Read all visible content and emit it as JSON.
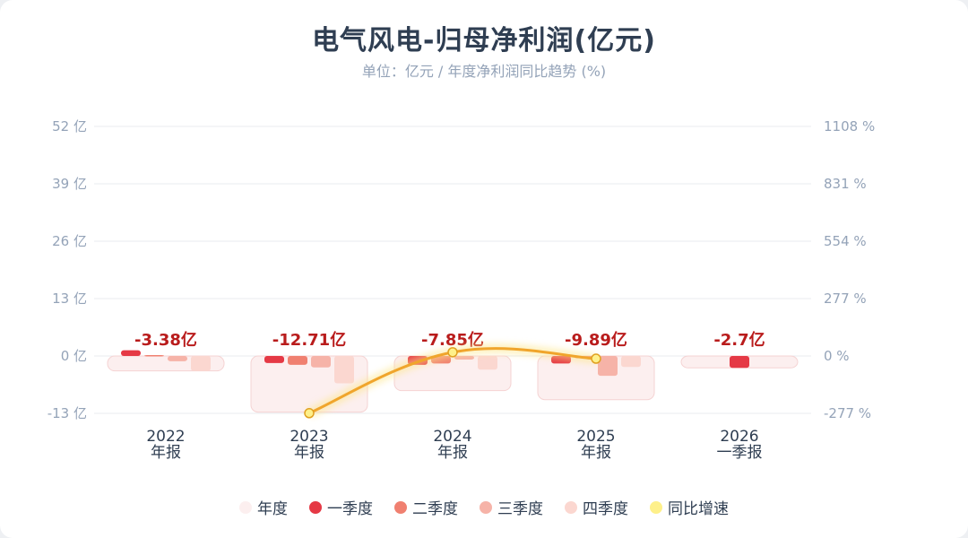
{
  "title": "电气风电-归母净利润(亿元)",
  "subtitle": "单位：亿元 / 年度净利润同比趋势 (%)",
  "colors": {
    "annual": "#fcefef",
    "q1": "#e53945",
    "q2": "#f08070",
    "q3": "#f6b3a8",
    "q4": "#fbd7d0",
    "yoy": "#f0a52c",
    "yoy_marker": "#fef08a",
    "value_label": "#b91c1c"
  },
  "chart_data": {
    "type": "bar",
    "title": "电气风电-归母净利润(亿元)",
    "subtitle": "单位：亿元 / 年度净利润同比趋势 (%)",
    "categories": [
      {
        "year": "2022",
        "period": "年报"
      },
      {
        "year": "2023",
        "period": "年报"
      },
      {
        "year": "2024",
        "period": "年报"
      },
      {
        "year": "2025",
        "period": "年报"
      },
      {
        "year": "2026",
        "period": "一季报"
      }
    ],
    "y_left": {
      "ticks": [
        52,
        39,
        26,
        13,
        0,
        -13
      ],
      "tick_labels": [
        "52 亿",
        "39 亿",
        "26 亿",
        "13 亿",
        "0 亿",
        "-13 亿"
      ],
      "range": [
        -13,
        52
      ]
    },
    "y_right": {
      "ticks": [
        1108,
        831,
        554,
        277,
        0,
        -277
      ],
      "tick_labels": [
        "1108 %",
        "831 %",
        "554 %",
        "277 %",
        "0 %",
        "-277 %"
      ],
      "range": [
        -277,
        1108
      ]
    },
    "annual_labels": [
      "-3.38亿",
      "-12.71亿",
      "-7.85亿",
      "-9.89亿",
      "-2.7亿"
    ],
    "series": [
      {
        "name": "年度",
        "key": "annual",
        "values": [
          -3.38,
          -12.71,
          -7.85,
          -9.89,
          -2.7
        ]
      },
      {
        "name": "一季度",
        "key": "q1",
        "values": [
          1.3,
          -1.6,
          -2.0,
          -1.7,
          -2.7
        ]
      },
      {
        "name": "二季度",
        "key": "q2",
        "values": [
          0.2,
          -2.0,
          -1.7,
          -0.5,
          null
        ]
      },
      {
        "name": "三季度",
        "key": "q3",
        "values": [
          -1.2,
          -2.6,
          -0.8,
          -4.5,
          null
        ]
      },
      {
        "name": "四季度",
        "key": "q4",
        "values": [
          -3.4,
          -6.2,
          -3.1,
          -2.5,
          null
        ]
      },
      {
        "name": "同比增速",
        "key": "yoy",
        "axis": "right",
        "values": [
          null,
          -276,
          18,
          -13,
          null
        ]
      }
    ],
    "grid": true,
    "legend_position": "bottom"
  },
  "legend": [
    {
      "label": "年度",
      "color_key": "annual"
    },
    {
      "label": "一季度",
      "color_key": "q1"
    },
    {
      "label": "二季度",
      "color_key": "q2"
    },
    {
      "label": "三季度",
      "color_key": "q3"
    },
    {
      "label": "四季度",
      "color_key": "q4"
    },
    {
      "label": "同比增速",
      "color_key": "yoy_marker"
    }
  ]
}
